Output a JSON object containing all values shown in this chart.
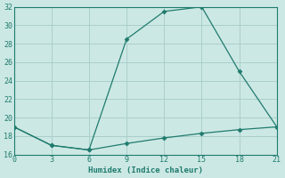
{
  "xlabel": "Humidex (Indice chaleur)",
  "line1_x": [
    0,
    3,
    6,
    9,
    12,
    15,
    18,
    21
  ],
  "line1_y": [
    19,
    17,
    16.5,
    28.5,
    31.5,
    32,
    25,
    19
  ],
  "line2_x": [
    0,
    3,
    6,
    9,
    12,
    15,
    18,
    21
  ],
  "line2_y": [
    19,
    17,
    16.5,
    17.2,
    17.8,
    18.3,
    18.7,
    19
  ],
  "line_color": "#1f7b6e",
  "bg_color": "#cce8e4",
  "grid_color": "#aacfcb",
  "xlim": [
    0,
    21
  ],
  "ylim": [
    16,
    32
  ],
  "xticks": [
    0,
    3,
    6,
    9,
    12,
    15,
    18,
    21
  ],
  "yticks": [
    16,
    18,
    20,
    22,
    24,
    26,
    28,
    30,
    32
  ],
  "markersize": 2.5,
  "linewidth": 0.9,
  "xlabel_fontsize": 6.5,
  "tick_fontsize": 6.0
}
